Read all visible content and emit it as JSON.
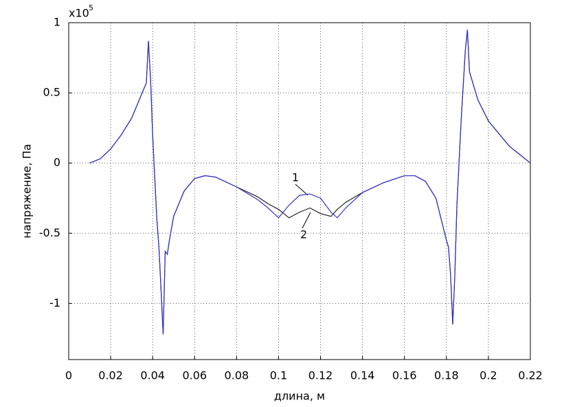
{
  "chart_data": {
    "type": "line",
    "x_label": "длина, м",
    "y_label": "напряжение, Па",
    "y_multiplier": "x10",
    "y_multiplier_exponent": "5",
    "x": [
      0.01,
      0.015,
      0.02,
      0.025,
      0.03,
      0.035,
      0.037,
      0.038,
      0.039,
      0.04,
      0.042,
      0.043,
      0.044,
      0.045,
      0.046,
      0.047,
      0.048,
      0.05,
      0.055,
      0.06,
      0.065,
      0.07,
      0.08,
      0.09,
      0.095,
      0.1,
      0.105,
      0.11,
      0.115,
      0.12,
      0.125,
      0.128,
      0.132,
      0.14,
      0.15,
      0.16,
      0.165,
      0.17,
      0.175,
      0.18,
      0.181,
      0.182,
      0.183,
      0.184,
      0.185,
      0.187,
      0.189,
      0.19,
      0.191,
      0.195,
      0.2,
      0.21,
      0.22
    ],
    "series": [
      {
        "name": "1",
        "color": "#3333cc",
        "values": [
          0,
          0.03,
          0.1,
          0.2,
          0.32,
          0.5,
          0.57,
          0.87,
          0.6,
          0.2,
          -0.4,
          -0.6,
          -0.9,
          -1.22,
          -0.63,
          -0.65,
          -0.55,
          -0.38,
          -0.2,
          -0.11,
          -0.09,
          -0.1,
          -0.17,
          -0.26,
          -0.32,
          -0.39,
          -0.3,
          -0.23,
          -0.22,
          -0.25,
          -0.35,
          -0.39,
          -0.32,
          -0.21,
          -0.14,
          -0.09,
          -0.09,
          -0.13,
          -0.25,
          -0.55,
          -0.6,
          -0.8,
          -1.15,
          -0.8,
          -0.3,
          0.3,
          0.8,
          0.95,
          0.65,
          0.45,
          0.3,
          0.12,
          0
        ]
      },
      {
        "name": "2",
        "color": "#222222",
        "values": [
          0,
          0.03,
          0.1,
          0.2,
          0.32,
          0.5,
          0.57,
          0.87,
          0.6,
          0.2,
          -0.4,
          -0.6,
          -0.9,
          -1.22,
          -0.63,
          -0.65,
          -0.55,
          -0.38,
          -0.2,
          -0.11,
          -0.09,
          -0.1,
          -0.17,
          -0.24,
          -0.29,
          -0.33,
          -0.39,
          -0.35,
          -0.32,
          -0.36,
          -0.38,
          -0.33,
          -0.28,
          -0.21,
          -0.14,
          -0.09,
          -0.09,
          -0.13,
          -0.25,
          -0.55,
          -0.6,
          -0.8,
          -1.15,
          -0.8,
          -0.3,
          0.3,
          0.8,
          0.95,
          0.65,
          0.45,
          0.3,
          0.12,
          0
        ]
      }
    ],
    "xlim": [
      0,
      0.22
    ],
    "xticks": [
      0,
      0.02,
      0.04,
      0.06,
      0.08,
      0.1,
      0.12,
      0.14,
      0.16,
      0.18,
      0.2,
      0.22
    ],
    "ylim": [
      -1.4,
      1
    ],
    "yticks": [
      -1,
      -0.5,
      0,
      0.5,
      1
    ],
    "grid": true
  }
}
